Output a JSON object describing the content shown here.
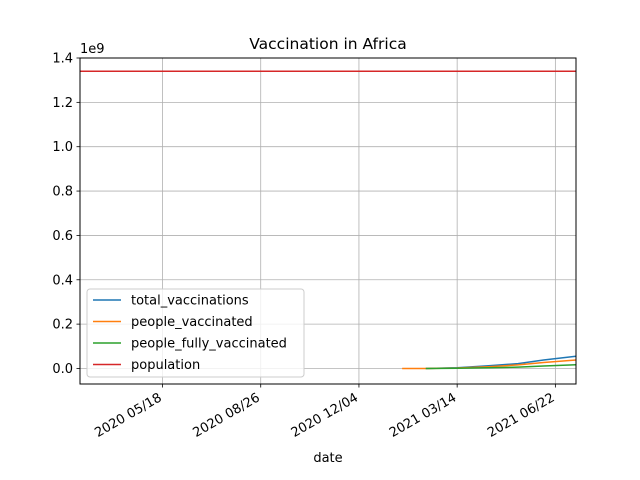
{
  "chart_data": {
    "type": "line",
    "title": "Vaccination in Africa",
    "xlabel": "date",
    "ylabel": "",
    "y_offset_text": "1e9",
    "y_multiplier": 1000000000,
    "xlim": [
      "2020-02-24",
      "2021-07-13"
    ],
    "ylim": [
      -0.07,
      1.4
    ],
    "x_ticks": [
      {
        "date": "2020-05-18",
        "label": "2020 05/18"
      },
      {
        "date": "2020-08-26",
        "label": "2020 08/26"
      },
      {
        "date": "2020-12-04",
        "label": "2020 12/04"
      },
      {
        "date": "2021-03-14",
        "label": "2021 03/14"
      },
      {
        "date": "2021-06-22",
        "label": "2021 06/22"
      }
    ],
    "y_ticks": [
      {
        "value": 0.0,
        "label": "0.0"
      },
      {
        "value": 0.2,
        "label": "0.2"
      },
      {
        "value": 0.4,
        "label": "0.4"
      },
      {
        "value": 0.6,
        "label": "0.6"
      },
      {
        "value": 0.8,
        "label": "0.8"
      },
      {
        "value": 1.0,
        "label": "1.0"
      },
      {
        "value": 1.2,
        "label": "1.2"
      },
      {
        "value": 1.4,
        "label": "1.4"
      }
    ],
    "grid": true,
    "legend_position": "lower-left",
    "series": [
      {
        "name": "total_vaccinations",
        "color": "#1f77b4",
        "points": [
          [
            "2021-02-10",
            0.0
          ],
          [
            "2021-03-14",
            0.003
          ],
          [
            "2021-04-15",
            0.012
          ],
          [
            "2021-05-15",
            0.022
          ],
          [
            "2021-06-10",
            0.038
          ],
          [
            "2021-07-13",
            0.055
          ]
        ]
      },
      {
        "name": "people_vaccinated",
        "color": "#ff7f0e",
        "points": [
          [
            "2021-01-17",
            0.0
          ],
          [
            "2021-02-10",
            0.0
          ],
          [
            "2021-03-14",
            0.002
          ],
          [
            "2021-04-15",
            0.008
          ],
          [
            "2021-05-15",
            0.016
          ],
          [
            "2021-06-10",
            0.027
          ],
          [
            "2021-07-13",
            0.038
          ]
        ]
      },
      {
        "name": "people_fully_vaccinated",
        "color": "#2ca02c",
        "points": [
          [
            "2021-02-10",
            0.0
          ],
          [
            "2021-03-14",
            0.001
          ],
          [
            "2021-04-15",
            0.003
          ],
          [
            "2021-05-15",
            0.006
          ],
          [
            "2021-06-10",
            0.011
          ],
          [
            "2021-07-13",
            0.017
          ]
        ]
      },
      {
        "name": "population",
        "color": "#d62728",
        "points": [
          [
            "2020-02-24",
            1.34
          ],
          [
            "2021-07-13",
            1.34
          ]
        ]
      }
    ]
  }
}
